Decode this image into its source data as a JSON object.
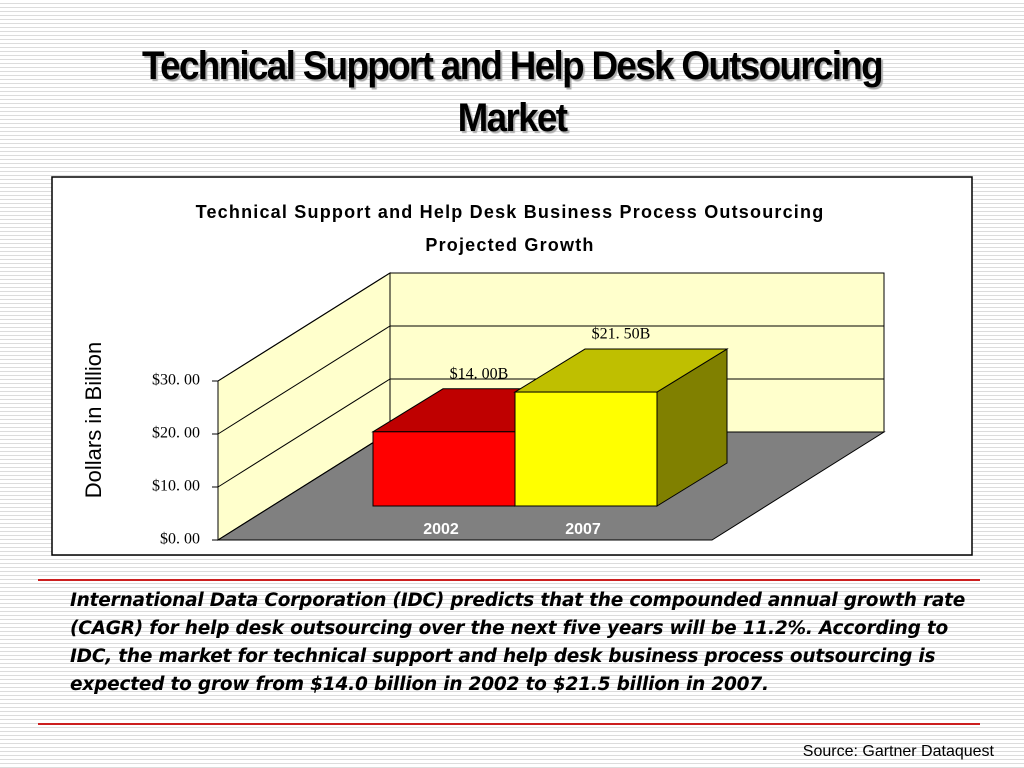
{
  "title": "Technical Support and Help Desk Outsourcing Market",
  "chart_data": {
    "type": "bar3d",
    "title": "Technical Support and Help Desk Business Process Outsourcing Projected Growth",
    "y_label": "Dollars in Billion",
    "categories": [
      "2002",
      "2007"
    ],
    "values": [
      14.0,
      21.5
    ],
    "value_labels": [
      "$14. 00B",
      "$21. 50B"
    ],
    "colors": [
      "#ff0000",
      "#ffff00"
    ],
    "ylim": [
      0,
      30
    ],
    "yticks": [
      {
        "value": 0,
        "label": "$0. 00"
      },
      {
        "value": 10,
        "label": "$10. 00"
      },
      {
        "value": 20,
        "label": "$20. 00"
      },
      {
        "value": 30,
        "label": "$30. 00"
      }
    ],
    "grid": true
  },
  "body_text": "International Data Corporation (IDC) predicts that the compounded annual growth rate (CAGR) for help desk outsourcing over the next five years will be 11.2%. According to IDC, the market for technical support and help desk business process outsourcing is expected to grow from $14.0 billion in 2002 to $21.5 billion in 2007.",
  "source": "Source: Gartner Dataquest"
}
